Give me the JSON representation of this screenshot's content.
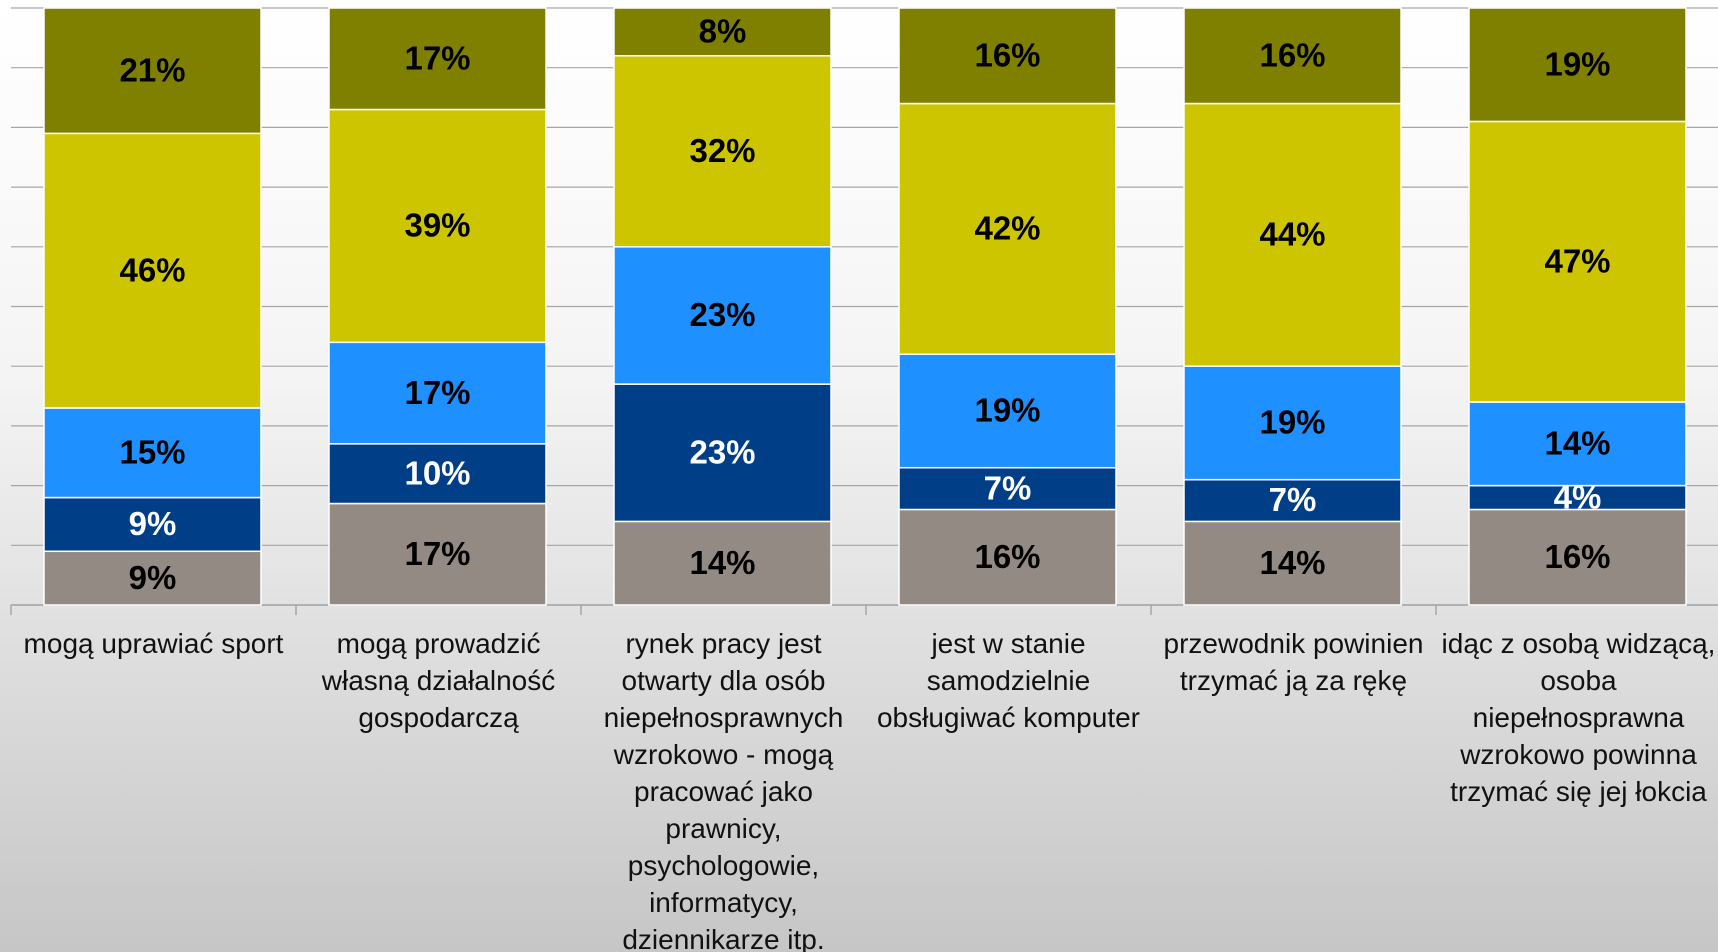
{
  "chart_data": {
    "type": "stacked_bar",
    "categories": [
      "mogą uprawiać sport",
      "mogą prowadzić własną działalność gospodarczą",
      "rynek pracy jest otwarty dla osób niepełnosprawnych wzrokowo - mogą pracować jako prawnicy, psychologowie, informatycy, dziennikarze itp.",
      "jest w stanie samodzielnie obsługiwać komputer",
      "przewodnik powinien trzymać ją za rękę",
      "idąc z osobą widzącą, osoba niepełnosprawna wzrokowo powinna trzymać się jej łokcia"
    ],
    "series": [
      {
        "color": "#948a84",
        "values": [
          9,
          17,
          14,
          16,
          14,
          16
        ],
        "value_labels": [
          "9%",
          "17%",
          "14%",
          "16%",
          "14%",
          "16%"
        ]
      },
      {
        "color": "#003f87",
        "values": [
          9,
          10,
          23,
          7,
          7,
          4
        ],
        "value_labels": [
          "9%",
          "10%",
          "23%",
          "7%",
          "7%",
          "4%"
        ]
      },
      {
        "color": "#1e90ff",
        "values": [
          15,
          17,
          23,
          19,
          19,
          14
        ],
        "value_labels": [
          "15%",
          "17%",
          "23%",
          "19%",
          "19%",
          "14%"
        ]
      },
      {
        "color": "#cdc500",
        "values": [
          46,
          39,
          32,
          42,
          44,
          47
        ],
        "value_labels": [
          "46%",
          "39%",
          "32%",
          "42%",
          "44%",
          "47%"
        ]
      },
      {
        "color": "#7f8000",
        "values": [
          21,
          17,
          8,
          16,
          16,
          19
        ],
        "value_labels": [
          "21%",
          "17%",
          "8%",
          "16%",
          "16%",
          "19%"
        ]
      }
    ],
    "ylim": [
      0,
      100
    ],
    "yticks": [
      0,
      10,
      20,
      30,
      40,
      50,
      60,
      70,
      80,
      90,
      100
    ],
    "grid": true
  }
}
